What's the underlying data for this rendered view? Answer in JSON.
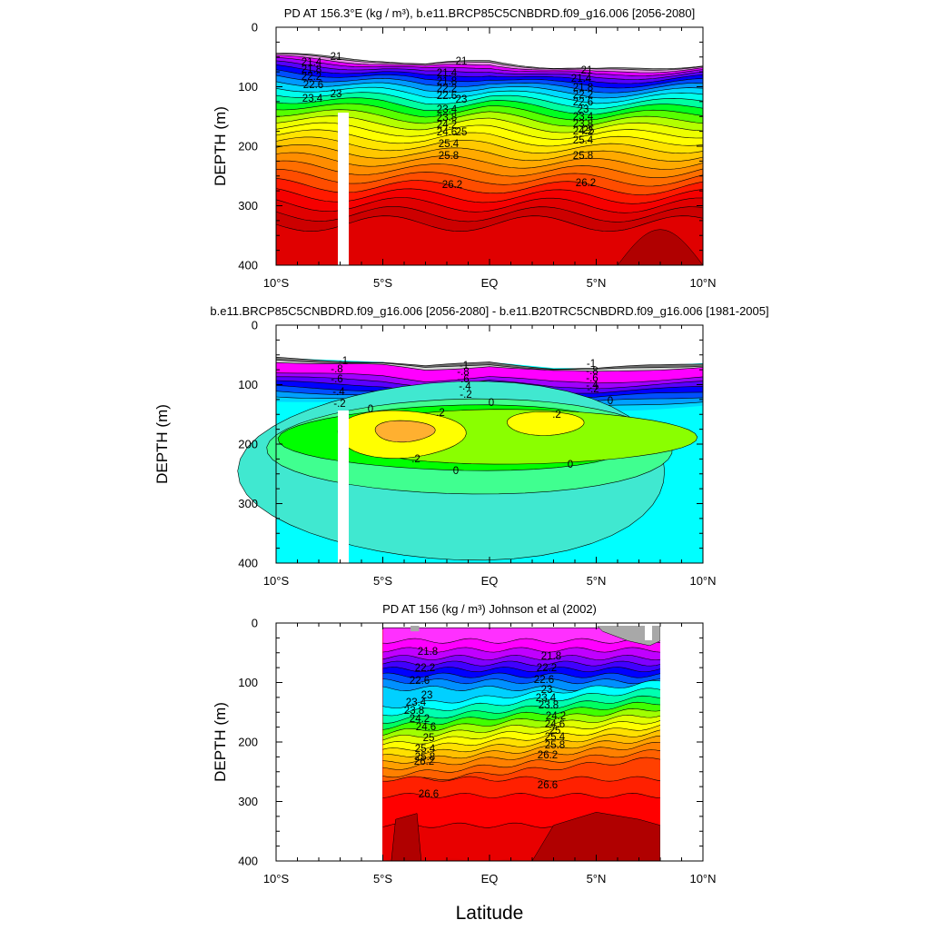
{
  "chart_data": [
    {
      "type": "contour",
      "title": "PD AT 156.3°E (kg / m³), b.e11.BRCP85C5CNBDRD.f09_g16.006 [2056-2080]",
      "ylabel": "DEPTH (m)",
      "xlim": [
        -10,
        10
      ],
      "ylim": [
        400,
        0
      ],
      "x_tick_labels": [
        "10°S",
        "5°S",
        "EQ",
        "5°N",
        "10°N"
      ],
      "y_tick_labels": [
        "0",
        "100",
        "200",
        "300",
        "400"
      ],
      "contour_labels": [
        "21",
        "21.4",
        "21.8",
        "22.2",
        "22.6",
        "23",
        "23.4",
        "23.8",
        "24.2",
        "24.6",
        "25",
        "25.4",
        "25.8",
        "26.2"
      ],
      "fields": [
        {
          "name": "pd_levels",
          "from": 21.0,
          "to": 26.6,
          "step": 0.2
        },
        {
          "name": "surface_depth_m",
          "values": [
            [
              -10,
              45
            ],
            [
              -5,
              55
            ],
            [
              -3,
              63
            ],
            [
              0,
              56
            ],
            [
              3,
              68
            ],
            [
              5,
              72
            ],
            [
              10,
              64
            ]
          ]
        }
      ]
    },
    {
      "type": "contour",
      "title": "b.e11.BRCP85C5CNBDRD.f09_g16.006 [2056-2080] - b.e11.B20TRC5CNBDRD.f09_g16.006 [1981-2005]",
      "ylabel": "DEPTH (m)",
      "xlim": [
        -10,
        10
      ],
      "ylim": [
        400,
        0
      ],
      "x_tick_labels": [
        "10°S",
        "5°S",
        "EQ",
        "5°N",
        "10°N"
      ],
      "y_tick_labels": [
        "0",
        "100",
        "200",
        "300",
        "400"
      ],
      "contour_labels": [
        "-1",
        "-.8",
        "-.6",
        "-.4",
        "-.2",
        "0",
        ".2"
      ]
    },
    {
      "type": "contour",
      "title": "PD AT 156 (kg / m³) Johnson et al (2002)",
      "ylabel": "DEPTH (m)",
      "xlabel": "Latitude",
      "xlim": [
        -10,
        10
      ],
      "ylim": [
        400,
        0
      ],
      "x_tick_labels": [
        "10°S",
        "5°S",
        "EQ",
        "5°N",
        "10°N"
      ],
      "y_tick_labels": [
        "0",
        "100",
        "200",
        "300",
        "400"
      ],
      "data_x_range": [
        -5,
        8
      ],
      "contour_labels": [
        "21.8",
        "22.2",
        "22.6",
        "23",
        "23.4",
        "23.8",
        "24.2",
        "24.6",
        "25",
        "25.4",
        "25.8",
        "26.2",
        "26.6"
      ]
    }
  ]
}
